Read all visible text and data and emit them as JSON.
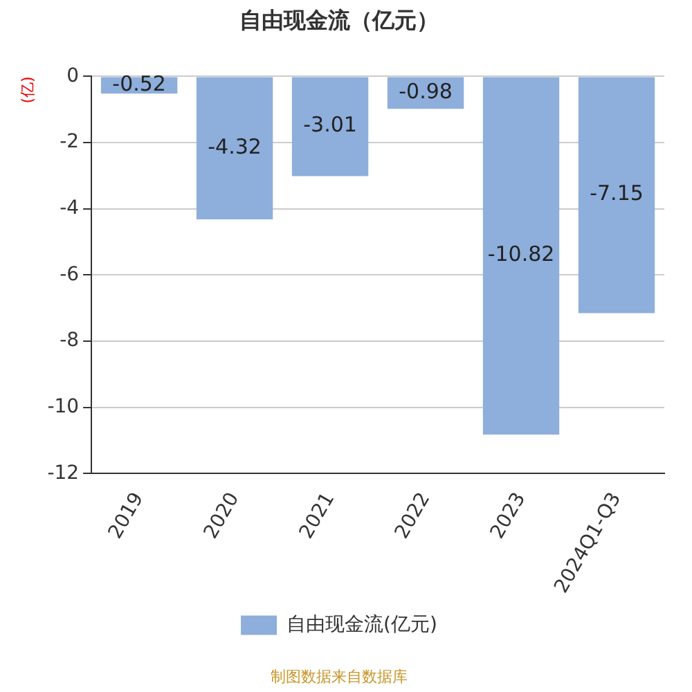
{
  "chart_data": {
    "type": "bar",
    "title": "自由现金流（亿元）",
    "ylabel": "(亿)",
    "categories": [
      "2019",
      "2020",
      "2021",
      "2022",
      "2023",
      "2024Q1-Q3"
    ],
    "series": [
      {
        "name": "自由现金流(亿元)",
        "color": "#8eaedc",
        "values": [
          -0.52,
          -4.32,
          -3.01,
          -0.98,
          -10.82,
          -7.15
        ]
      }
    ],
    "ylim": [
      -12,
      0
    ],
    "yticks": [
      0,
      -2,
      -4,
      -6,
      -8,
      -10,
      -12
    ],
    "grid": "y",
    "legend": "bottom",
    "data_labels": true,
    "annotations": [
      "制图数据来自数据库"
    ]
  }
}
